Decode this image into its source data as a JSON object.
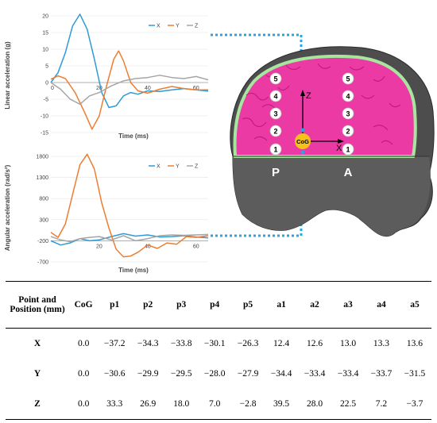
{
  "chart_data": [
    {
      "type": "line",
      "xlabel": "Time (ms)",
      "ylabel": "Linear acceleration  (g)",
      "xlim": [
        0,
        65
      ],
      "ylim": [
        -15,
        20
      ],
      "x_ticks": [
        "20",
        "40",
        "60"
      ],
      "x_tick_values": [
        20,
        40,
        60
      ],
      "zero_label": "0",
      "y_ticks": [
        "20",
        "15",
        "10",
        "5",
        "0",
        "-5",
        "-10",
        "-15"
      ],
      "y_tick_values": [
        20,
        15,
        10,
        5,
        0,
        -5,
        -10,
        -15
      ],
      "legend_position": "top-right",
      "series": [
        {
          "name": "X",
          "color": "#2e9bd6",
          "x": [
            0,
            3,
            6,
            9,
            12,
            15,
            18,
            21,
            24,
            27,
            30,
            33,
            36,
            40,
            45,
            50,
            55,
            60,
            65
          ],
          "y": [
            0,
            3,
            9,
            17,
            20.5,
            16,
            7,
            -3,
            -7.5,
            -7,
            -4,
            -3,
            -3.5,
            -2.5,
            -2.7,
            -2.2,
            -1.8,
            -2.2,
            -2.6
          ]
        },
        {
          "name": "Y",
          "color": "#ed7d31",
          "x": [
            0,
            3,
            6,
            10,
            14,
            17,
            20,
            23,
            26,
            28,
            30,
            33,
            36,
            40,
            45,
            50,
            55,
            60,
            65
          ],
          "y": [
            1,
            2,
            1.2,
            -3,
            -9,
            -14,
            -10,
            -1,
            7,
            9.5,
            6.5,
            0,
            -2.5,
            -3.2,
            -2,
            -1.2,
            -1.8,
            -2.2,
            -2.2
          ]
        },
        {
          "name": "Z",
          "color": "#a5a5a5",
          "x": [
            0,
            4,
            8,
            12,
            16,
            20,
            25,
            30,
            35,
            40,
            45,
            50,
            55,
            60,
            65
          ],
          "y": [
            0,
            -2,
            -5,
            -6.5,
            -4,
            -3,
            -1,
            0.5,
            1.2,
            1.5,
            2.2,
            1.5,
            1.2,
            1.8,
            0.8
          ]
        }
      ]
    },
    {
      "type": "line",
      "xlabel": "Time (ms)",
      "ylabel": "Angular acceleration (rad/s²)",
      "xlim": [
        0,
        65
      ],
      "ylim": [
        -700,
        1800
      ],
      "x_ticks": [
        "20",
        "40",
        "60"
      ],
      "x_tick_values": [
        20,
        40,
        60
      ],
      "y_ticks": [
        "1800",
        "1300",
        "800",
        "300",
        "-200",
        "-700"
      ],
      "y_tick_values": [
        1800,
        1300,
        800,
        300,
        -200,
        -700
      ],
      "legend_position": "top-right",
      "series": [
        {
          "name": "X",
          "color": "#2e9bd6",
          "x": [
            0,
            4,
            8,
            12,
            16,
            20,
            25,
            30,
            35,
            40,
            45,
            50,
            55,
            60,
            65
          ],
          "y": [
            -200,
            -300,
            -250,
            -150,
            -200,
            -180,
            -100,
            -30,
            -90,
            -60,
            -110,
            -100,
            -80,
            -110,
            -130
          ]
        },
        {
          "name": "Y",
          "color": "#ed7d31",
          "x": [
            0,
            3,
            6,
            9,
            12,
            15,
            18,
            21,
            24,
            27,
            30,
            33,
            36,
            40,
            44,
            48,
            52,
            56,
            60,
            65
          ],
          "y": [
            0,
            -120,
            200,
            900,
            1600,
            1850,
            1500,
            700,
            100,
            -400,
            -580,
            -560,
            -470,
            -300,
            -380,
            -250,
            -280,
            -100,
            -120,
            -80
          ]
        },
        {
          "name": "Z",
          "color": "#a5a5a5",
          "x": [
            0,
            4,
            8,
            12,
            16,
            20,
            25,
            30,
            35,
            40,
            45,
            50,
            55,
            60,
            65
          ],
          "y": [
            -100,
            -180,
            -220,
            -150,
            -120,
            -100,
            -180,
            -80,
            -200,
            -150,
            -80,
            -60,
            -70,
            -60,
            -50
          ]
        }
      ]
    }
  ],
  "illustration": {
    "head_label_p": "P",
    "head_label_a": "A",
    "cog_label": "CoG",
    "axis_z": "Z",
    "axis_x": "X",
    "points_p": [
      "5",
      "4",
      "3",
      "2",
      "1"
    ],
    "points_a": [
      "5",
      "4",
      "3",
      "2",
      "1"
    ],
    "colors": {
      "brain": "#ec3aa5",
      "skull": "#4d4d4d",
      "cog": "#f6c11b",
      "connector": "#2aa4e0"
    }
  },
  "table": {
    "headers": [
      "Point and Position (mm)",
      "CoG",
      "p1",
      "p2",
      "p3",
      "p4",
      "p5",
      "a1",
      "a2",
      "a3",
      "a4",
      "a5"
    ],
    "rows": [
      {
        "label": "X",
        "values": [
          "0.0",
          "−37.2",
          "−34.3",
          "−33.8",
          "−30.1",
          "−26.3",
          "12.4",
          "12.6",
          "13.0",
          "13.3",
          "13.6"
        ]
      },
      {
        "label": "Y",
        "values": [
          "0.0",
          "−30.6",
          "−29.9",
          "−29.5",
          "−28.0",
          "−27.9",
          "−34.4",
          "−33.4",
          "−33.4",
          "−33.7",
          "−31.5"
        ]
      },
      {
        "label": "Z",
        "values": [
          "0.0",
          "33.3",
          "26.9",
          "18.0",
          "7.0",
          "−2.8",
          "39.5",
          "28.0",
          "22.5",
          "7.2",
          "−3.7"
        ]
      }
    ]
  }
}
